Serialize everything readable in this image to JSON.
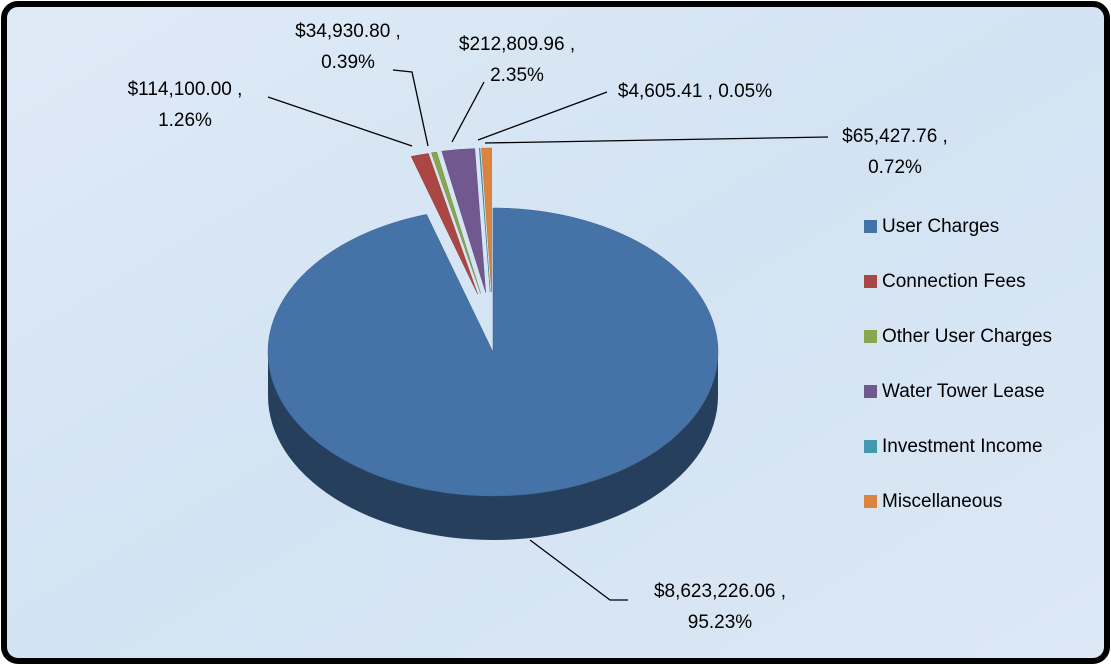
{
  "chart_data": {
    "type": "pie",
    "categories": [
      "User Charges",
      "Connection Fees",
      "Other User Charges",
      "Water Tower Lease",
      "Investment Income",
      "Miscellaneous"
    ],
    "values": [
      8623226.06,
      114100.0,
      34930.8,
      212809.96,
      4605.41,
      65427.76
    ],
    "value_labels": [
      [
        "$8,623,226.06 ,",
        "95.23%"
      ],
      [
        "$114,100.00 ,",
        "1.26%"
      ],
      [
        "$34,930.80 ,",
        "0.39%"
      ],
      [
        "$212,809.96 ,",
        "2.35%"
      ],
      [
        "$4,605.41 , 0.05%"
      ],
      [
        "$65,427.76 ,",
        "0.72%"
      ]
    ],
    "colors": [
      "#4573a7",
      "#aa4643",
      "#89a54e",
      "#71588f",
      "#4198af",
      "#db843d"
    ],
    "legend": "right",
    "three_d": true
  }
}
